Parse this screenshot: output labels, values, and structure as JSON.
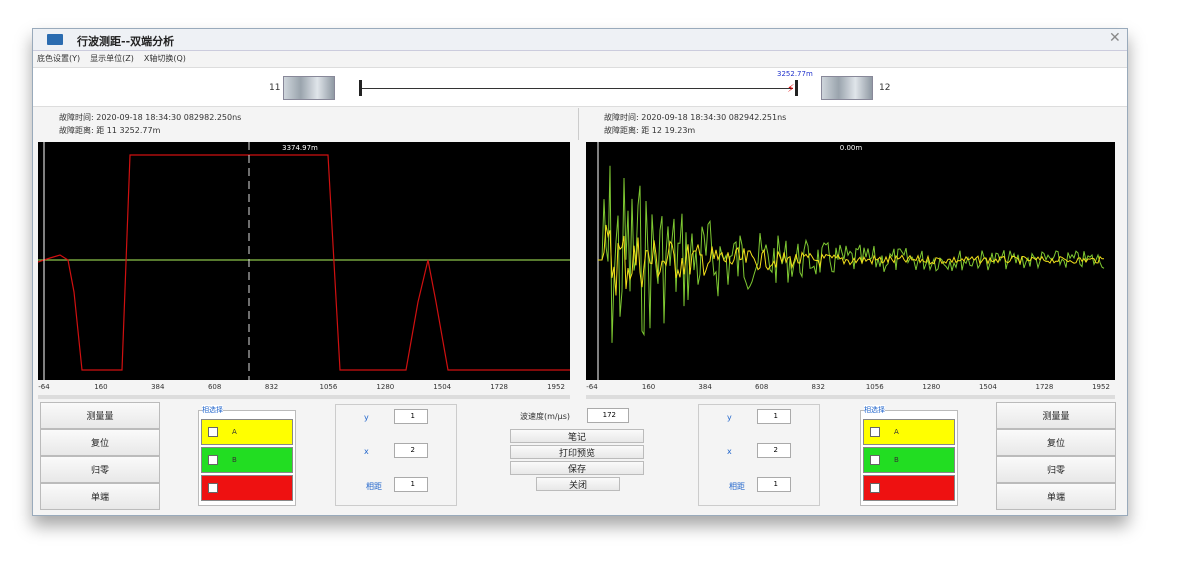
{
  "window": {
    "title": "行波测距--双端分析"
  },
  "menu": [
    "底色设置(Y)",
    "显示单位(Z)",
    "X轴切换(Q)"
  ],
  "line_diagram": {
    "left_station": "11",
    "right_station": "12",
    "fault_label": "3252.77m"
  },
  "info": {
    "left": {
      "time": "故障时间: 2020-09-18 18:34:30 082982.250ns",
      "distance": "故障距离: 距  11  3252.77m"
    },
    "right": {
      "time": "故障时间: 2020-09-18 18:34:30 082942.251ns",
      "distance": "故障距离: 距  12  19.23m"
    }
  },
  "plots": [
    {
      "cursor_label": "3374.97m",
      "x_ticks": [
        -64,
        160,
        384,
        608,
        832,
        1056,
        1280,
        1504,
        1728,
        1952
      ]
    },
    {
      "cursor_label": "0.00m",
      "x_ticks": [
        -64,
        160,
        384,
        608,
        832,
        1056,
        1280,
        1504,
        1728,
        1952
      ]
    }
  ],
  "panels": [
    {
      "buttons": [
        "测量量",
        "复位",
        "归零",
        "单端"
      ],
      "phase_group": {
        "title": "相选择",
        "phases": [
          "A",
          "B"
        ]
      },
      "controls": [
        {
          "label": "y",
          "value": 1
        },
        {
          "label": "x",
          "value": 2
        },
        {
          "label": "相距",
          "value": 1
        }
      ]
    },
    {
      "buttons": [
        "测量量",
        "复位",
        "归零",
        "单端"
      ],
      "phase_group": {
        "title": "相选择",
        "phases": [
          "A",
          "B"
        ]
      },
      "controls": [
        {
          "label": "y",
          "value": 1
        },
        {
          "label": "x",
          "value": 2
        },
        {
          "label": "相距",
          "value": 1
        }
      ]
    }
  ],
  "center": {
    "wave_speed": {
      "label": "波速度(m/μs)",
      "value": 172
    },
    "buttons": [
      "笔记",
      "打印预览",
      "保存",
      "关闭"
    ]
  }
}
